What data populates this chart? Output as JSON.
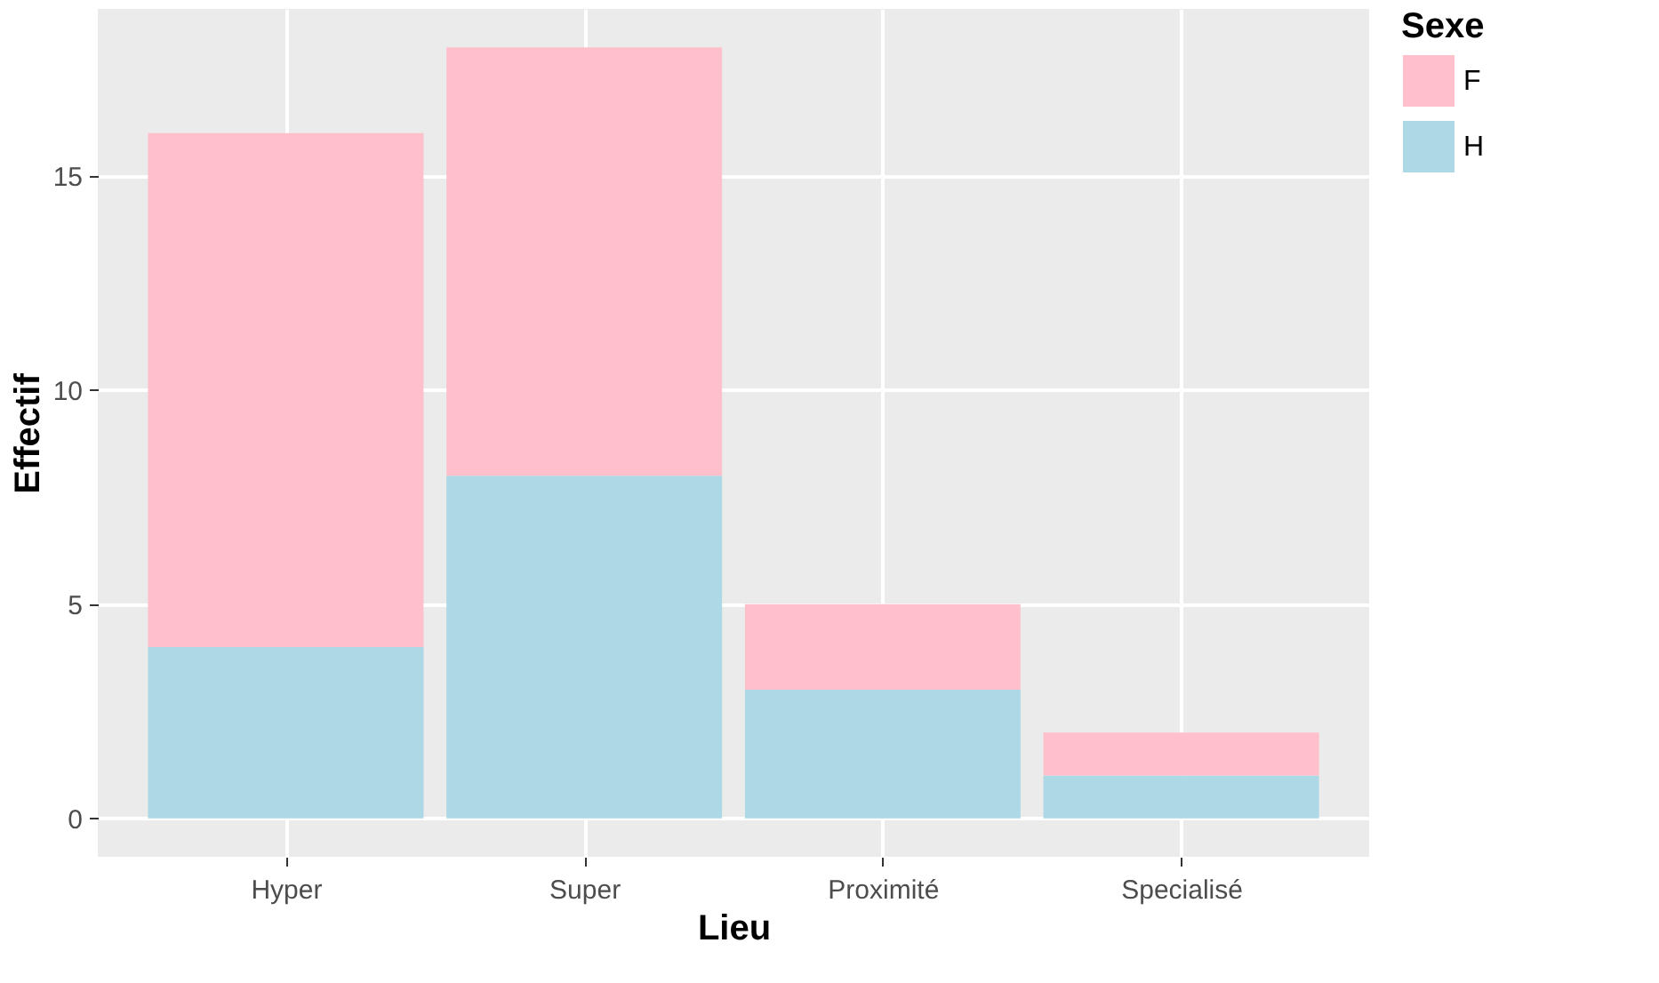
{
  "chart_data": {
    "type": "bar",
    "xlabel": "Lieu",
    "ylabel": "Effectif",
    "legend_title": "Sexe",
    "categories": [
      "Hyper",
      "Super",
      "Proximité",
      "Specialisé"
    ],
    "series": [
      {
        "name": "H",
        "color": "#add8e6",
        "values": [
          4,
          8,
          3,
          1
        ]
      },
      {
        "name": "F",
        "color": "#ffc0cb",
        "values": [
          12,
          10,
          2,
          1
        ]
      }
    ],
    "stacked": true,
    "ylim": [
      -0.9,
      18.9
    ],
    "yticks": [
      0,
      5,
      10,
      15
    ],
    "grid": true,
    "legend": "right"
  }
}
